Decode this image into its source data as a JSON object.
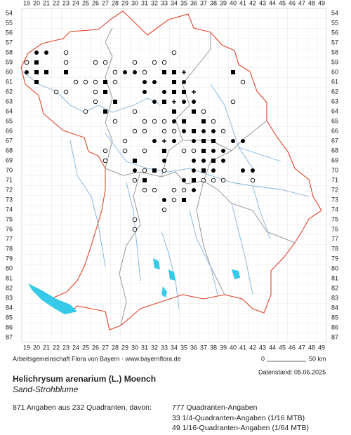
{
  "map": {
    "columns": [
      19,
      20,
      21,
      22,
      23,
      24,
      25,
      26,
      27,
      28,
      29,
      30,
      31,
      32,
      33,
      34,
      35,
      36,
      37,
      38,
      39,
      40,
      41,
      42,
      43,
      44,
      45,
      46,
      47,
      48,
      49
    ],
    "rows": [
      54,
      55,
      56,
      57,
      58,
      59,
      60,
      61,
      62,
      63,
      64,
      65,
      66,
      67,
      68,
      69,
      70,
      71,
      72,
      73,
      74,
      75,
      76,
      77,
      78,
      79,
      80,
      81,
      82,
      83,
      84,
      85,
      86,
      87
    ],
    "markers": {
      "filled_squares": [
        [
          20,
          59
        ],
        [
          20,
          60
        ],
        [
          21,
          60
        ],
        [
          20,
          61
        ],
        [
          23,
          60
        ],
        [
          27,
          61
        ],
        [
          27,
          62
        ],
        [
          28,
          63
        ],
        [
          27,
          64
        ],
        [
          33,
          60
        ],
        [
          34,
          61
        ],
        [
          34,
          62
        ],
        [
          35,
          62
        ],
        [
          33,
          63
        ],
        [
          34,
          64
        ],
        [
          36,
          64
        ],
        [
          37,
          65
        ],
        [
          36,
          66
        ],
        [
          37,
          67
        ],
        [
          38,
          67
        ],
        [
          37,
          68
        ],
        [
          38,
          69
        ],
        [
          37,
          70
        ],
        [
          36,
          71
        ],
        [
          35,
          65
        ],
        [
          32,
          70
        ],
        [
          35,
          73
        ],
        [
          33,
          68
        ],
        [
          31,
          71
        ],
        [
          30,
          69
        ],
        [
          34,
          60
        ],
        [
          40,
          60
        ]
      ],
      "filled_circles": [
        [
          20,
          58
        ],
        [
          21,
          58
        ],
        [
          19,
          60
        ],
        [
          32,
          61
        ],
        [
          31,
          62
        ],
        [
          32,
          63
        ],
        [
          33,
          62
        ],
        [
          35,
          61
        ],
        [
          35,
          63
        ],
        [
          36,
          63
        ],
        [
          34,
          65
        ],
        [
          35,
          66
        ],
        [
          36,
          67
        ],
        [
          37,
          66
        ],
        [
          38,
          66
        ],
        [
          38,
          68
        ],
        [
          39,
          68
        ],
        [
          39,
          69
        ],
        [
          40,
          67
        ],
        [
          41,
          67
        ],
        [
          36,
          70
        ],
        [
          38,
          70
        ],
        [
          41,
          70
        ],
        [
          42,
          70
        ],
        [
          30,
          70
        ],
        [
          35,
          71
        ],
        [
          33,
          73
        ],
        [
          36,
          72
        ],
        [
          33,
          69
        ],
        [
          32,
          67
        ],
        [
          34,
          67
        ],
        [
          37,
          69
        ],
        [
          36,
          69
        ],
        [
          31,
          61
        ],
        [
          29,
          60
        ],
        [
          30,
          60
        ]
      ],
      "open_circles": [
        [
          23,
          58
        ],
        [
          19,
          59
        ],
        [
          23,
          59
        ],
        [
          26,
          59
        ],
        [
          27,
          59
        ],
        [
          28,
          60
        ],
        [
          24,
          61
        ],
        [
          25,
          61
        ],
        [
          26,
          61
        ],
        [
          22,
          62
        ],
        [
          23,
          62
        ],
        [
          26,
          62
        ],
        [
          26,
          63
        ],
        [
          25,
          64
        ],
        [
          28,
          61
        ],
        [
          30,
          59
        ],
        [
          31,
          60
        ],
        [
          32,
          59
        ],
        [
          33,
          59
        ],
        [
          34,
          58
        ],
        [
          30,
          64
        ],
        [
          31,
          65
        ],
        [
          32,
          65
        ],
        [
          31,
          66
        ],
        [
          33,
          66
        ],
        [
          29,
          67
        ],
        [
          30,
          66
        ],
        [
          27,
          68
        ],
        [
          27,
          69
        ],
        [
          29,
          68
        ],
        [
          31,
          72
        ],
        [
          32,
          72
        ],
        [
          30,
          71
        ],
        [
          31,
          70
        ],
        [
          33,
          74
        ],
        [
          34,
          73
        ],
        [
          35,
          72
        ],
        [
          34,
          72
        ],
        [
          30,
          75
        ],
        [
          30,
          76
        ],
        [
          33,
          65
        ],
        [
          34,
          66
        ],
        [
          38,
          65
        ],
        [
          39,
          66
        ],
        [
          40,
          63
        ],
        [
          37,
          64
        ],
        [
          39,
          71
        ],
        [
          42,
          71
        ],
        [
          41,
          61
        ],
        [
          33,
          70
        ],
        [
          35,
          68
        ],
        [
          36,
          68
        ],
        [
          38,
          71
        ],
        [
          37,
          71
        ],
        [
          28,
          65
        ],
        [
          31,
          68
        ]
      ],
      "crosses": [
        [
          35,
          60
        ],
        [
          34,
          63
        ],
        [
          36,
          62
        ],
        [
          33,
          67
        ]
      ]
    }
  },
  "footer": {
    "credit": "Arbeitsgemeinschaft Flora von Bayern - www.bayernflora.de",
    "scale_start": "0",
    "scale_end": "50 km",
    "date": "Datenstand: 05.06.2025",
    "species": "Helichrysum arenarium (L.) Moench",
    "common_name": "Sand-Strohblume",
    "summary": "871 Angaben aus 232 Quadranten, davon:",
    "breakdown": [
      "777 Quadranten-Angaben",
      "33 1/4-Quadranten-Angaben (1/16 MTB)",
      "49 1/16-Quadranten-Angaben (1/64 MTB)"
    ]
  }
}
